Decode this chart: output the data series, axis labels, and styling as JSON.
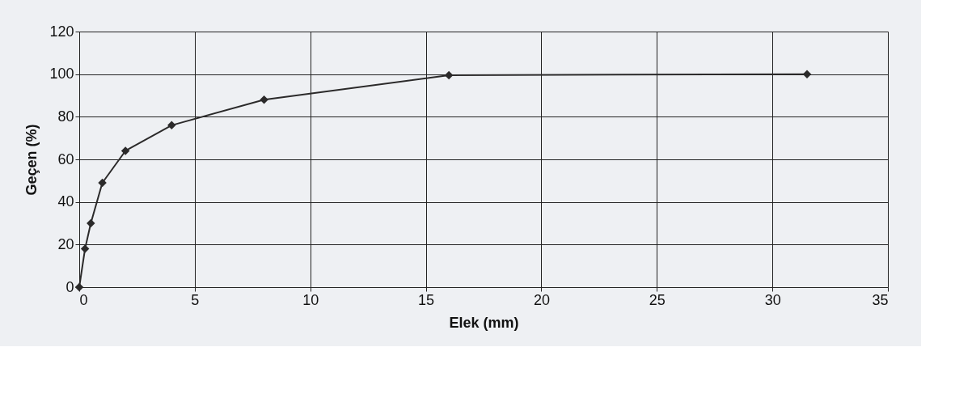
{
  "chart_data": {
    "type": "line",
    "xlabel": "Elek (mm)",
    "ylabel": "Geçen (%)",
    "x": [
      0,
      0.25,
      0.5,
      1,
      2,
      4,
      8,
      16,
      31.5
    ],
    "series": [
      {
        "color": "#2b2a2a",
        "values": [
          0,
          18,
          30,
          49,
          64,
          76,
          88,
          99.5,
          100
        ]
      }
    ],
    "xlim": [
      0,
      35
    ],
    "xticks": [
      0,
      5,
      10,
      15,
      20,
      25,
      30,
      35
    ],
    "ylim": [
      0,
      120
    ],
    "yticks": [
      0,
      20,
      40,
      60,
      80,
      100,
      120
    ],
    "grid": true,
    "marker": "diamond",
    "line_style": "solid"
  }
}
